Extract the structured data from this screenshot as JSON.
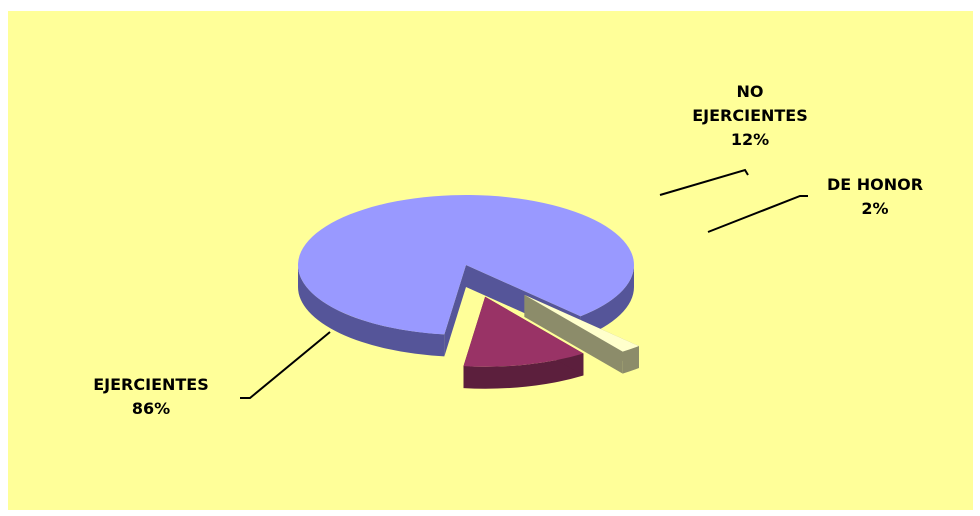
{
  "chart_data": {
    "type": "pie",
    "style": "3d-exploded",
    "slices": [
      {
        "name": "EJERCIENTES",
        "value": 86,
        "label": "86%",
        "color": "#9999ff",
        "side_color": "#555599"
      },
      {
        "name": "NO EJERCIENTES",
        "value": 12,
        "label": "12%",
        "color": "#993366",
        "side_color": "#5c1f3d"
      },
      {
        "name": "DE HONOR",
        "value": 2,
        "label": "2%",
        "color": "#ffffcc",
        "side_color": "#8c8c6a"
      }
    ],
    "background_color": "#ffff99"
  },
  "labels": {
    "ejercientes": {
      "line1": "EJERCIENTES",
      "line2": "86%"
    },
    "no_ejercientes": {
      "line1": "NO",
      "line2": "EJERCIENTES",
      "line3": "12%"
    },
    "de_honor": {
      "line1": "DE HONOR",
      "line2": "2%"
    }
  }
}
